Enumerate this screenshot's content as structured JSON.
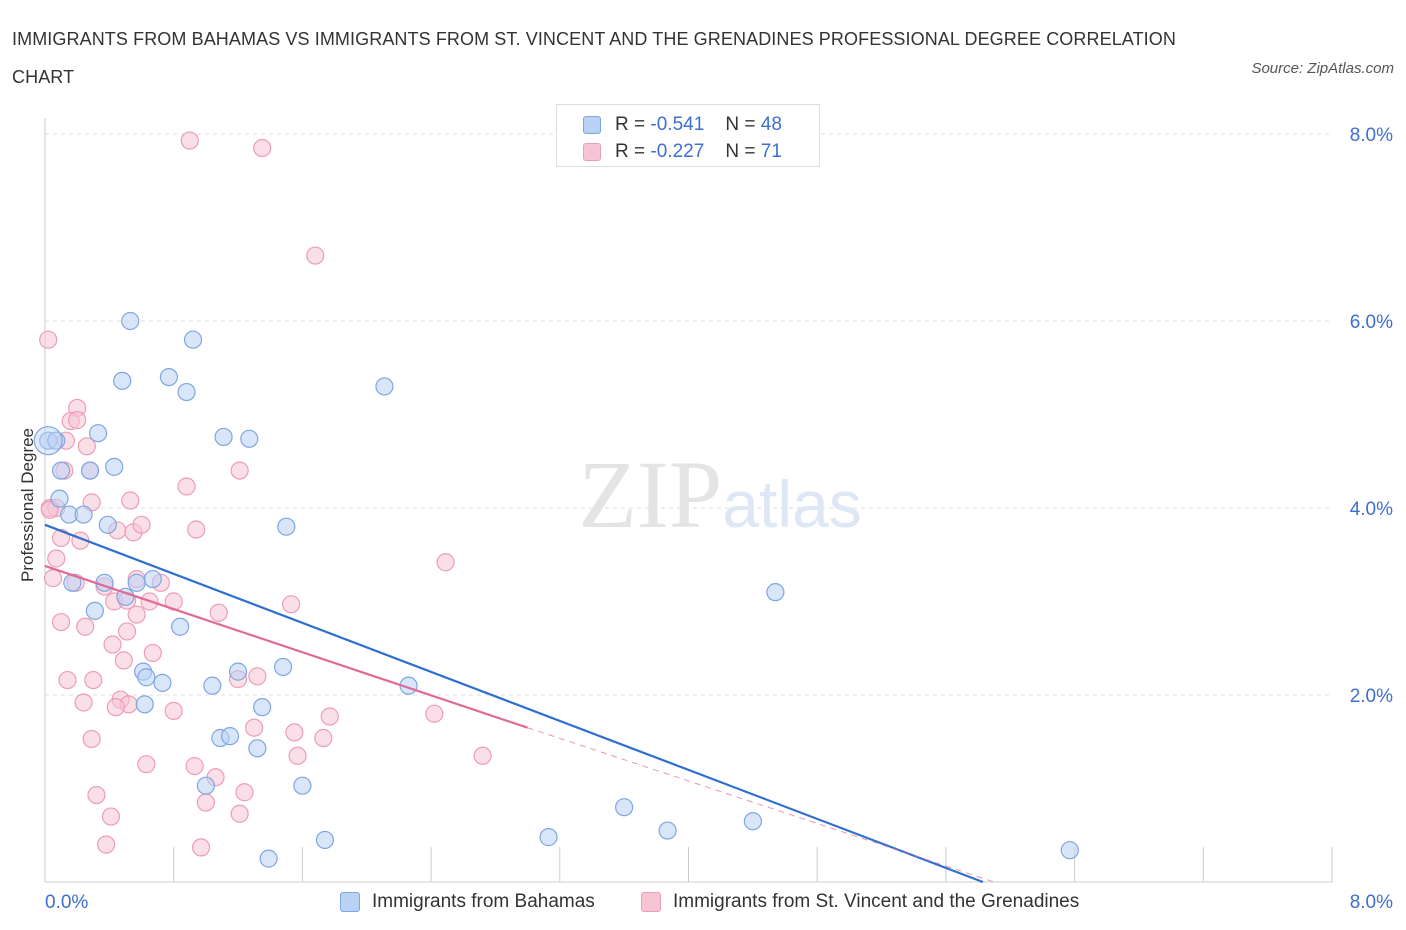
{
  "header": {
    "title": "IMMIGRANTS FROM BAHAMAS VS IMMIGRANTS FROM ST. VINCENT AND THE GRENADINES PROFESSIONAL DEGREE CORRELATION CHART",
    "source": "Source: ZipAtlas.com"
  },
  "legend": {
    "r_label": "R =",
    "n_label": "N =",
    "series1_r": "-0.541",
    "series1_n": "48",
    "series2_r": "-0.227",
    "series2_n": "71"
  },
  "colors": {
    "blue_fill": "#b9d1f5",
    "blue_stroke": "#7ea6e0",
    "blue_line": "#2f6fd0",
    "pink_fill": "#f7c4d4",
    "pink_stroke": "#ec9db8",
    "pink_line": "#e06a95",
    "axis_text": "#3d6fd1",
    "grid": "#dddddd"
  },
  "chart_data": {
    "type": "scatter",
    "xlabel": "",
    "ylabel": "Professional Degree",
    "xlim": [
      0,
      8
    ],
    "ylim": [
      0,
      8
    ],
    "x_ticks": [
      "0.0%",
      "8.0%"
    ],
    "y_ticks": [
      "2.0%",
      "4.0%",
      "6.0%",
      "8.0%"
    ],
    "y_tick_values": [
      2,
      4,
      6,
      8
    ],
    "grid": true,
    "watermark": "ZIPatlas",
    "series": [
      {
        "name": "Immigrants from Bahamas",
        "r": -0.541,
        "n": 48,
        "color": "blue",
        "trend": {
          "x": [
            0,
            5.83
          ],
          "y": [
            3.82,
            0.0
          ],
          "dashed_to": null
        },
        "points": [
          [
            0.02,
            4.72
          ],
          [
            0.07,
            4.72
          ],
          [
            0.1,
            4.4
          ],
          [
            0.28,
            4.4
          ],
          [
            0.09,
            4.1
          ],
          [
            0.15,
            3.93
          ],
          [
            0.33,
            4.8
          ],
          [
            0.43,
            4.44
          ],
          [
            0.48,
            5.36
          ],
          [
            0.53,
            6.0
          ],
          [
            0.77,
            5.4
          ],
          [
            0.88,
            5.24
          ],
          [
            0.92,
            5.8
          ],
          [
            1.11,
            4.76
          ],
          [
            1.27,
            4.74
          ],
          [
            0.24,
            3.93
          ],
          [
            0.39,
            3.82
          ],
          [
            0.17,
            3.2
          ],
          [
            0.37,
            3.2
          ],
          [
            0.31,
            2.9
          ],
          [
            0.5,
            3.05
          ],
          [
            0.57,
            3.2
          ],
          [
            0.67,
            3.24
          ],
          [
            0.84,
            2.73
          ],
          [
            1.5,
            3.8
          ],
          [
            2.11,
            5.3
          ],
          [
            0.61,
            2.25
          ],
          [
            0.63,
            2.19
          ],
          [
            0.73,
            2.13
          ],
          [
            0.62,
            1.9
          ],
          [
            1.04,
            2.1
          ],
          [
            1.2,
            2.25
          ],
          [
            1.48,
            2.3
          ],
          [
            1.35,
            1.87
          ],
          [
            1.09,
            1.54
          ],
          [
            1.15,
            1.56
          ],
          [
            1.32,
            1.43
          ],
          [
            1.0,
            1.03
          ],
          [
            1.6,
            1.03
          ],
          [
            1.74,
            0.45
          ],
          [
            1.39,
            0.25
          ],
          [
            2.26,
            2.1
          ],
          [
            3.13,
            0.48
          ],
          [
            3.6,
            0.8
          ],
          [
            3.87,
            0.55
          ],
          [
            4.4,
            0.65
          ],
          [
            4.54,
            3.1
          ],
          [
            6.37,
            0.34
          ]
        ]
      },
      {
        "name": "Immigrants from St. Vincent and the Grenadines",
        "r": -0.227,
        "n": 71,
        "color": "pink",
        "trend": {
          "x": [
            0,
            3.0
          ],
          "y": [
            3.38,
            1.65
          ],
          "dashed_to": [
            5.9,
            0.0
          ]
        },
        "points": [
          [
            0.02,
            5.8
          ],
          [
            0.2,
            5.07
          ],
          [
            0.16,
            4.93
          ],
          [
            0.2,
            4.94
          ],
          [
            0.13,
            4.72
          ],
          [
            0.26,
            4.66
          ],
          [
            0.12,
            4.4
          ],
          [
            0.28,
            4.4
          ],
          [
            0.03,
            4.0
          ],
          [
            0.07,
            4.0
          ],
          [
            0.29,
            4.06
          ],
          [
            0.53,
            4.08
          ],
          [
            0.88,
            4.23
          ],
          [
            1.21,
            4.4
          ],
          [
            0.1,
            3.68
          ],
          [
            0.22,
            3.65
          ],
          [
            0.07,
            3.46
          ],
          [
            0.45,
            3.76
          ],
          [
            0.55,
            3.74
          ],
          [
            0.6,
            3.82
          ],
          [
            0.94,
            3.77
          ],
          [
            0.05,
            3.25
          ],
          [
            0.19,
            3.2
          ],
          [
            0.37,
            3.16
          ],
          [
            0.57,
            3.24
          ],
          [
            0.72,
            3.2
          ],
          [
            0.65,
            3.0
          ],
          [
            0.43,
            3.0
          ],
          [
            0.51,
            3.01
          ],
          [
            0.8,
            3.0
          ],
          [
            1.08,
            2.88
          ],
          [
            0.57,
            2.86
          ],
          [
            0.1,
            2.78
          ],
          [
            0.25,
            2.73
          ],
          [
            0.51,
            2.68
          ],
          [
            0.42,
            2.54
          ],
          [
            0.67,
            2.45
          ],
          [
            0.49,
            2.37
          ],
          [
            1.2,
            2.17
          ],
          [
            0.14,
            2.16
          ],
          [
            0.3,
            2.16
          ],
          [
            1.32,
            2.2
          ],
          [
            1.53,
            2.97
          ],
          [
            2.49,
            3.42
          ],
          [
            0.47,
            1.95
          ],
          [
            0.52,
            1.9
          ],
          [
            0.24,
            1.92
          ],
          [
            0.8,
            1.83
          ],
          [
            0.44,
            1.87
          ],
          [
            1.3,
            1.65
          ],
          [
            1.55,
            1.6
          ],
          [
            1.77,
            1.77
          ],
          [
            1.73,
            1.54
          ],
          [
            0.29,
            1.53
          ],
          [
            1.57,
            1.35
          ],
          [
            2.42,
            1.8
          ],
          [
            2.72,
            1.35
          ],
          [
            0.63,
            1.26
          ],
          [
            0.93,
            1.24
          ],
          [
            1.06,
            1.12
          ],
          [
            0.32,
            0.93
          ],
          [
            0.41,
            0.7
          ],
          [
            1.0,
            0.85
          ],
          [
            1.24,
            0.96
          ],
          [
            1.21,
            0.73
          ],
          [
            0.38,
            0.4
          ],
          [
            0.97,
            0.37
          ],
          [
            1.68,
            6.7
          ],
          [
            0.9,
            7.93
          ],
          [
            1.35,
            7.85
          ],
          [
            0.03,
            3.98
          ]
        ]
      }
    ]
  },
  "bottom_legend": {
    "item1": "Immigrants from Bahamas",
    "item2": "Immigrants from St. Vincent and the Grenadines"
  }
}
